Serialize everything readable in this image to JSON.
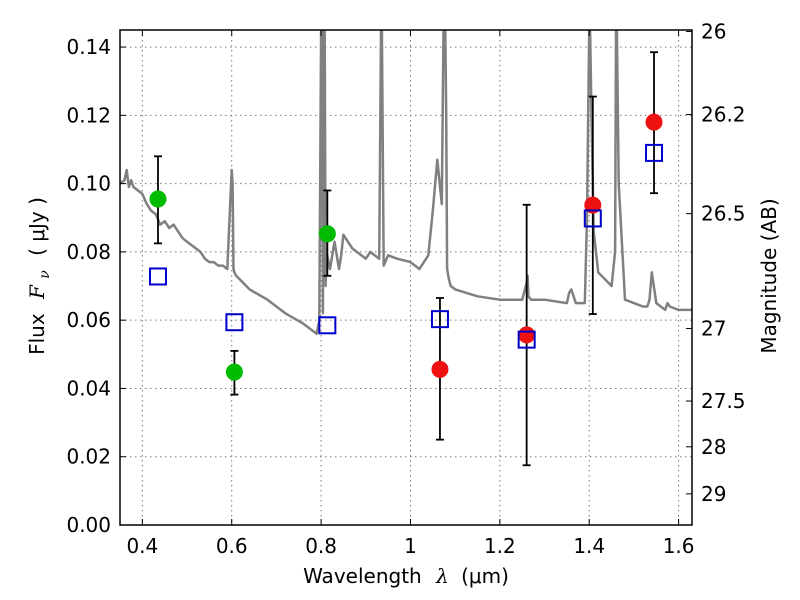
{
  "chart_data": {
    "type": "scatter",
    "xlabel": "Wavelength",
    "xlabel_symbol": "λ",
    "xlabel_unit": "(μm)",
    "ylabel": "Flux",
    "ylabel_symbol": "F",
    "ylabel_subscript": "ν",
    "ylabel_unit": "( μJy )",
    "y2label": "Magnitude (AB)",
    "xlim": [
      0.35,
      1.63
    ],
    "ylim": [
      0,
      0.145
    ],
    "grid": true,
    "x_ticks": [
      {
        "value": 0.4,
        "label": "0.4"
      },
      {
        "value": 0.6,
        "label": "0.6"
      },
      {
        "value": 0.8,
        "label": "0.8"
      },
      {
        "value": 1.0,
        "label": "1"
      },
      {
        "value": 1.2,
        "label": "1.2"
      },
      {
        "value": 1.4,
        "label": "1.4"
      },
      {
        "value": 1.6,
        "label": "1.6"
      }
    ],
    "y_ticks": [
      {
        "value": 0.0,
        "label": "0.00"
      },
      {
        "value": 0.02,
        "label": "0.02"
      },
      {
        "value": 0.04,
        "label": "0.04"
      },
      {
        "value": 0.06,
        "label": "0.06"
      },
      {
        "value": 0.08,
        "label": "0.08"
      },
      {
        "value": 0.1,
        "label": "0.10"
      },
      {
        "value": 0.12,
        "label": "0.12"
      },
      {
        "value": 0.14,
        "label": "0.14"
      }
    ],
    "y2_ticks": [
      {
        "value": 26,
        "label": "26"
      },
      {
        "value": 26.2,
        "label": "26.2"
      },
      {
        "value": 26.5,
        "label": "26.5"
      },
      {
        "value": 27,
        "label": "27"
      },
      {
        "value": 27.5,
        "label": "27.5"
      },
      {
        "value": 28,
        "label": "28"
      },
      {
        "value": 29,
        "label": "29"
      }
    ],
    "colors": {
      "sed": "#808080",
      "observed_optical": "#00bb00",
      "observed_nir": "#ee1111",
      "model": "#0000cc",
      "errorbar": "#000000"
    },
    "series": [
      {
        "kind": "line",
        "color_key": "sed",
        "x": [
          0.35,
          0.36,
          0.365,
          0.37,
          0.375,
          0.38,
          0.39,
          0.4,
          0.41,
          0.42,
          0.43,
          0.44,
          0.45,
          0.46,
          0.47,
          0.48,
          0.49,
          0.5,
          0.51,
          0.52,
          0.53,
          0.54,
          0.55,
          0.56,
          0.57,
          0.58,
          0.59,
          0.6,
          0.602,
          0.604,
          0.606,
          0.61,
          0.64,
          0.68,
          0.72,
          0.76,
          0.79,
          0.796,
          0.8,
          0.802,
          0.804,
          0.806,
          0.808,
          0.81,
          0.812,
          0.815,
          0.82,
          0.83,
          0.84,
          0.845,
          0.85,
          0.86,
          0.87,
          0.88,
          0.89,
          0.9,
          0.91,
          0.92,
          0.93,
          0.932,
          0.934,
          0.936,
          0.938,
          0.94,
          0.95,
          0.97,
          1.0,
          1.02,
          1.04,
          1.05,
          1.06,
          1.07,
          1.074,
          1.078,
          1.08,
          1.082,
          1.086,
          1.09,
          1.1,
          1.15,
          1.2,
          1.25,
          1.26,
          1.262,
          1.264,
          1.27,
          1.3,
          1.35,
          1.355,
          1.36,
          1.365,
          1.37,
          1.39,
          1.395,
          1.4,
          1.402,
          1.405,
          1.41,
          1.42,
          1.45,
          1.458,
          1.46,
          1.462,
          1.466,
          1.48,
          1.5,
          1.52,
          1.53,
          1.535,
          1.54,
          1.55,
          1.56,
          1.57,
          1.575,
          1.58,
          1.6,
          1.63
        ],
        "y": [
          0.1,
          0.101,
          0.104,
          0.099,
          0.101,
          0.099,
          0.098,
          0.097,
          0.094,
          0.092,
          0.091,
          0.088,
          0.089,
          0.087,
          0.088,
          0.086,
          0.084,
          0.083,
          0.082,
          0.081,
          0.08,
          0.078,
          0.077,
          0.077,
          0.076,
          0.076,
          0.075,
          0.104,
          0.1,
          0.075,
          0.074,
          0.073,
          0.069,
          0.066,
          0.062,
          0.059,
          0.056,
          0.06,
          0.145,
          0.145,
          0.062,
          0.145,
          0.145,
          0.07,
          0.08,
          0.078,
          0.075,
          0.083,
          0.075,
          0.079,
          0.085,
          0.083,
          0.081,
          0.08,
          0.079,
          0.078,
          0.08,
          0.079,
          0.078,
          0.11,
          0.145,
          0.145,
          0.11,
          0.076,
          0.079,
          0.078,
          0.077,
          0.075,
          0.079,
          0.092,
          0.107,
          0.094,
          0.145,
          0.145,
          0.12,
          0.075,
          0.072,
          0.07,
          0.069,
          0.067,
          0.066,
          0.066,
          0.071,
          0.073,
          0.067,
          0.066,
          0.066,
          0.065,
          0.068,
          0.069,
          0.067,
          0.065,
          0.065,
          0.09,
          0.145,
          0.145,
          0.12,
          0.086,
          0.074,
          0.07,
          0.08,
          0.145,
          0.145,
          0.1,
          0.066,
          0.065,
          0.064,
          0.064,
          0.066,
          0.074,
          0.065,
          0.064,
          0.063,
          0.065,
          0.064,
          0.063,
          0.063
        ]
      },
      {
        "kind": "errorbar",
        "marker": "circle",
        "color_key": "observed_optical",
        "points": [
          {
            "x": 0.435,
            "y": 0.0955,
            "ylo": 0.0825,
            "yhi": 0.108
          },
          {
            "x": 0.606,
            "y": 0.0448,
            "ylo": 0.0382,
            "yhi": 0.051
          },
          {
            "x": 0.814,
            "y": 0.0853,
            "ylo": 0.073,
            "yhi": 0.098
          }
        ]
      },
      {
        "kind": "errorbar",
        "marker": "circle",
        "color_key": "observed_nir",
        "points": [
          {
            "x": 1.066,
            "y": 0.0456,
            "ylo": 0.025,
            "yhi": 0.0665
          },
          {
            "x": 1.26,
            "y": 0.0557,
            "ylo": 0.0175,
            "yhi": 0.0938
          },
          {
            "x": 1.408,
            "y": 0.0937,
            "ylo": 0.0618,
            "yhi": 0.1255
          },
          {
            "x": 1.545,
            "y": 0.118,
            "ylo": 0.0972,
            "yhi": 0.1385
          }
        ]
      },
      {
        "kind": "marker",
        "marker": "open-square",
        "color_key": "model",
        "points": [
          {
            "x": 0.435,
            "y": 0.0728
          },
          {
            "x": 0.606,
            "y": 0.0594
          },
          {
            "x": 0.814,
            "y": 0.0585
          },
          {
            "x": 1.066,
            "y": 0.0603
          },
          {
            "x": 1.26,
            "y": 0.0543
          },
          {
            "x": 1.408,
            "y": 0.0898
          },
          {
            "x": 1.545,
            "y": 0.109
          }
        ]
      }
    ]
  }
}
